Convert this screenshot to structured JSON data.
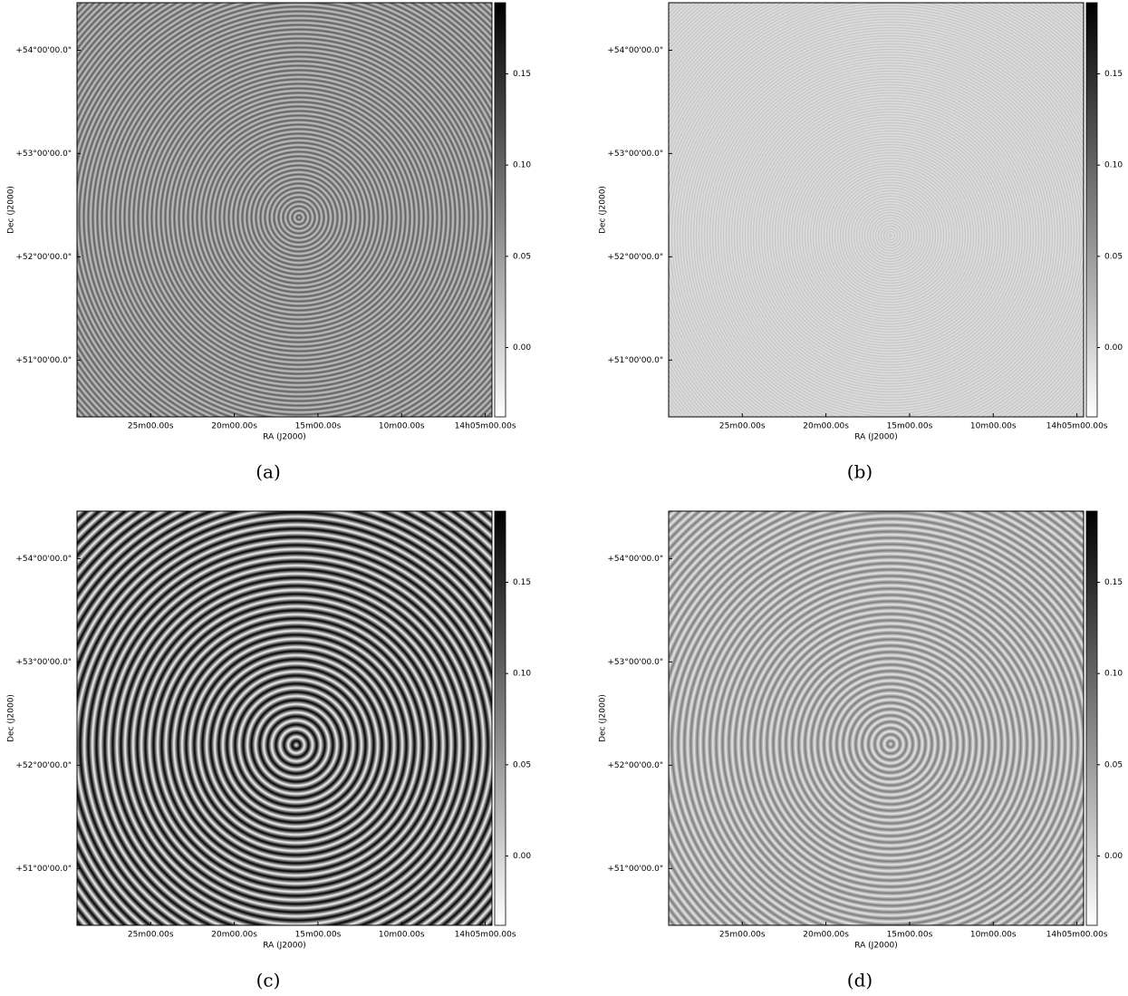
{
  "chart_data": [
    {
      "type": "image",
      "caption": "(a)",
      "xlabel": "RA (J2000)",
      "ylabel": "Dec (J2000)",
      "xlim": [
        29.4,
        4.6
      ],
      "xticks": [
        {
          "value": 25,
          "label": "25m00.00s"
        },
        {
          "value": 20,
          "label": "20m00.00s"
        },
        {
          "value": 15,
          "label": "15m00.00s"
        },
        {
          "value": 10,
          "label": "10m00.00s"
        },
        {
          "value": 5,
          "label": "14h05m00.00s"
        }
      ],
      "ylim": [
        50.45,
        54.46
      ],
      "yticks": [
        {
          "value": 51,
          "label": "+51°00'00.0\""
        },
        {
          "value": 52,
          "label": "+52°00'00.0\""
        },
        {
          "value": 53,
          "label": "+53°00'00.0\""
        },
        {
          "value": 54,
          "label": "+54°00'00.0\""
        }
      ],
      "clim": [
        -0.038,
        0.189
      ],
      "cticks": [
        {
          "value": 0,
          "label": "0.00"
        },
        0.05,
        {
          "value": 0.1,
          "label": "0.10"
        },
        0.15
      ]
    },
    {
      "type": "image",
      "caption": "(b)",
      "xlabel": "RA (J2000)",
      "ylabel": "Dec (J2000)",
      "xlim": [
        29.4,
        4.6
      ],
      "xticks": [
        {
          "value": 25,
          "label": "25m00.00s"
        },
        {
          "value": 20,
          "label": "20m00.00s"
        },
        {
          "value": 15,
          "label": "15m00.00s"
        },
        {
          "value": 10,
          "label": "10m00.00s"
        },
        {
          "value": 5,
          "label": "14h05m00.00s"
        }
      ],
      "ylim": [
        50.45,
        54.46
      ],
      "yticks": [
        {
          "value": 51,
          "label": "+51°00'00.0\""
        },
        {
          "value": 52,
          "label": "+52°00'00.0\""
        },
        {
          "value": 53,
          "label": "+53°00'00.0\""
        },
        {
          "value": 54,
          "label": "+54°00'00.0\""
        }
      ],
      "clim": [
        -0.038,
        0.189
      ],
      "cticks": [
        {
          "value": 0,
          "label": "0.00"
        },
        0.05,
        {
          "value": 0.1,
          "label": "0.10"
        },
        0.15
      ]
    },
    {
      "type": "image",
      "caption": "(c)",
      "xlabel": "RA (J2000)",
      "ylabel": "Dec (J2000)",
      "xlim": [
        29.4,
        4.6
      ],
      "xticks": [
        {
          "value": 25,
          "label": "25m00.00s"
        },
        {
          "value": 20,
          "label": "20m00.00s"
        },
        {
          "value": 15,
          "label": "15m00.00s"
        },
        {
          "value": 10,
          "label": "10m00.00s"
        },
        {
          "value": 5,
          "label": "14h05m00.00s"
        }
      ],
      "ylim": [
        50.45,
        54.46
      ],
      "yticks": [
        {
          "value": 51,
          "label": "+51°00'00.0\""
        },
        {
          "value": 52,
          "label": "+52°00'00.0\""
        },
        {
          "value": 53,
          "label": "+53°00'00.0\""
        },
        {
          "value": 54,
          "label": "+54°00'00.0\""
        }
      ],
      "clim": [
        -0.038,
        0.189
      ],
      "cticks": [
        {
          "value": 0,
          "label": "0.00"
        },
        0.05,
        {
          "value": 0.1,
          "label": "0.10"
        },
        0.15
      ]
    },
    {
      "type": "image",
      "caption": "(d)",
      "xlabel": "RA (J2000)",
      "ylabel": "Dec (J2000)",
      "xlim": [
        29.4,
        4.6
      ],
      "xticks": [
        {
          "value": 25,
          "label": "25m00.00s"
        },
        {
          "value": 20,
          "label": "20m00.00s"
        },
        {
          "value": 15,
          "label": "15m00.00s"
        },
        {
          "value": 10,
          "label": "10m00.00s"
        },
        {
          "value": 5,
          "label": "14h05m00.00s"
        }
      ],
      "ylim": [
        50.45,
        54.46
      ],
      "yticks": [
        {
          "value": 51,
          "label": "+51°00'00.0\""
        },
        {
          "value": 52,
          "label": "+52°00'00.0\""
        },
        {
          "value": 53,
          "label": "+53°00'00.0\""
        },
        {
          "value": 54,
          "label": "+54°00'00.0\""
        }
      ],
      "clim": [
        -0.038,
        0.189
      ],
      "cticks": [
        {
          "value": 0,
          "label": "0.00"
        },
        0.05,
        {
          "value": 0.1,
          "label": "0.10"
        },
        0.15
      ]
    }
  ]
}
